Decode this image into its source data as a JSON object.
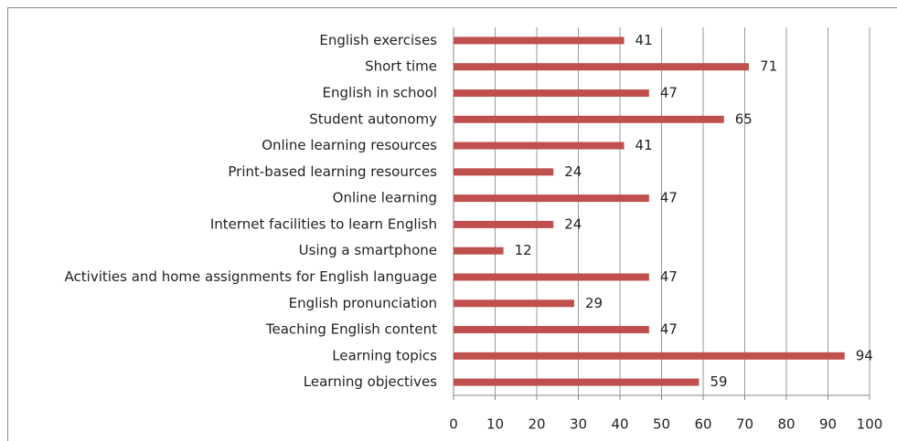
{
  "chart_data": {
    "type": "bar",
    "orientation": "horizontal",
    "categories": [
      "English exercises",
      "Short time",
      "English in school",
      "Student autonomy",
      "Online learning resources",
      "Print-based learning resources",
      "Online learning",
      "Internet facilities to learn English",
      "Using a smartphone",
      "Activities and home assignments for English language",
      "English pronunciation",
      "Teaching English content",
      "Learning topics",
      "Learning objectives"
    ],
    "values": [
      41,
      71,
      47,
      65,
      41,
      24,
      47,
      24,
      12,
      47,
      29,
      47,
      94,
      59
    ],
    "color": "#c0504d",
    "xlim": [
      0,
      100
    ],
    "xticks": [
      0,
      10,
      20,
      30,
      40,
      50,
      60,
      70,
      80,
      90,
      100
    ],
    "grid": true
  }
}
